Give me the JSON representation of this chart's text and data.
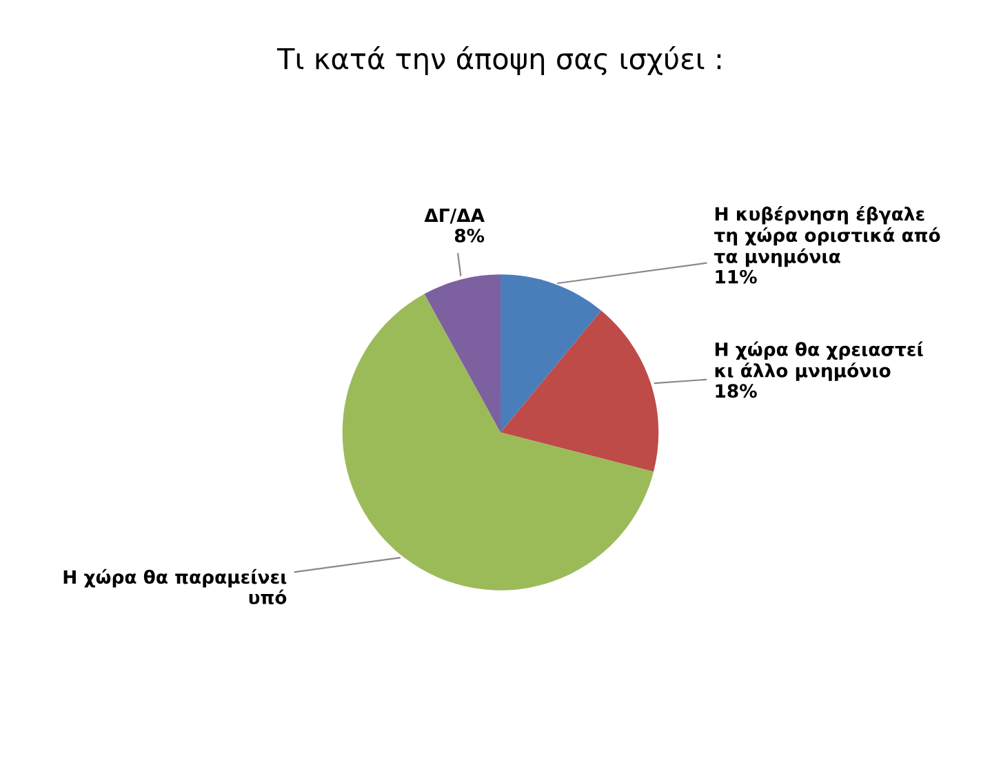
{
  "chart_data": {
    "type": "pie",
    "title": "Τι κατά την άποψη σας ισχύει :",
    "categories": [
      "Η κυβέρνηση έβγαλε τη χώρα οριστικά από τα μνημόνια",
      "Η χώρα θα χρειαστεί κι άλλο μνημόνιο",
      "Η χώρα θα παραμείνει υπό",
      "ΔΓ/ΔΑ"
    ],
    "values": [
      11,
      18,
      63,
      8
    ],
    "value_labels": [
      "11%",
      "18%",
      null,
      "8%"
    ],
    "colors": [
      "#4a7ebb",
      "#be4b48",
      "#9bbb59",
      "#7d60a0"
    ],
    "legend": false
  }
}
